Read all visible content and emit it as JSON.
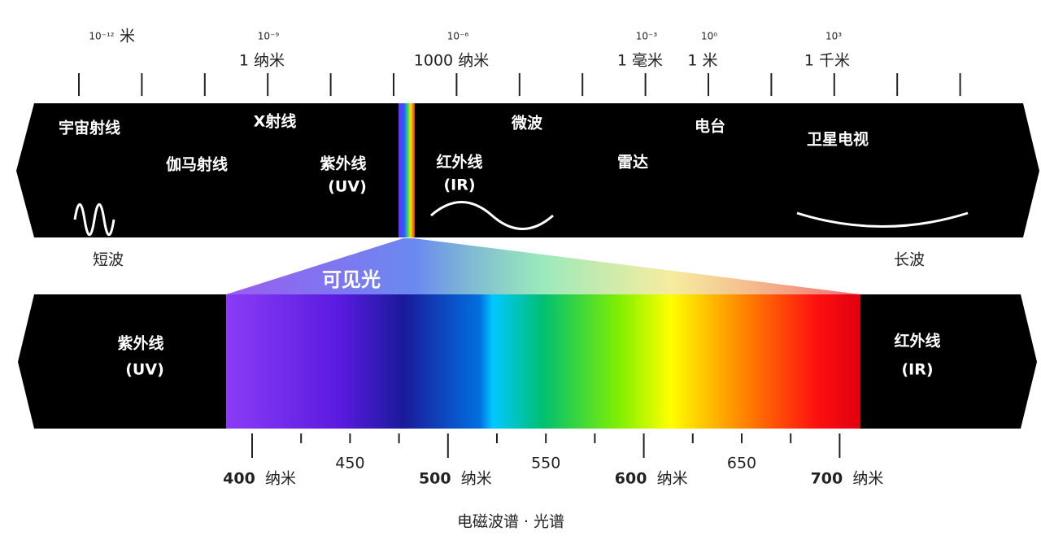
{
  "scale": [
    {
      "power": "10⁻¹²",
      "unit": "米"
    },
    {
      "power": "10⁻⁹",
      "unit": "1 纳米"
    },
    {
      "power": "10⁻⁶",
      "unit": "1000 纳米"
    },
    {
      "power": "10⁻³",
      "unit": "1 毫米"
    },
    {
      "power": "10⁰",
      "unit": "1 米"
    },
    {
      "power": "10³",
      "unit": "1 千米"
    }
  ],
  "bands": [
    "宇宙射线",
    "伽马射线",
    "X射线",
    "紫外线",
    "(UV)",
    "红外线",
    "(IR)",
    "微波",
    "雷达",
    "电台",
    "卫星电视"
  ],
  "ends": {
    "short": "短波",
    "long": "长波"
  },
  "visible": "可见光",
  "spectrum_sides": {
    "uv": "紫外线",
    "uv_abbr": "(UV)",
    "ir": "红外线",
    "ir_abbr": "(IR)"
  },
  "wavelengths": [
    {
      "value": "400",
      "unit": "纳米"
    },
    {
      "value": "450"
    },
    {
      "value": "500",
      "unit": "纳米"
    },
    {
      "value": "550"
    },
    {
      "value": "600",
      "unit": "纳米"
    },
    {
      "value": "650"
    },
    {
      "value": "700",
      "unit": "纳米"
    }
  ],
  "caption": "电磁波谱 · 光谱"
}
